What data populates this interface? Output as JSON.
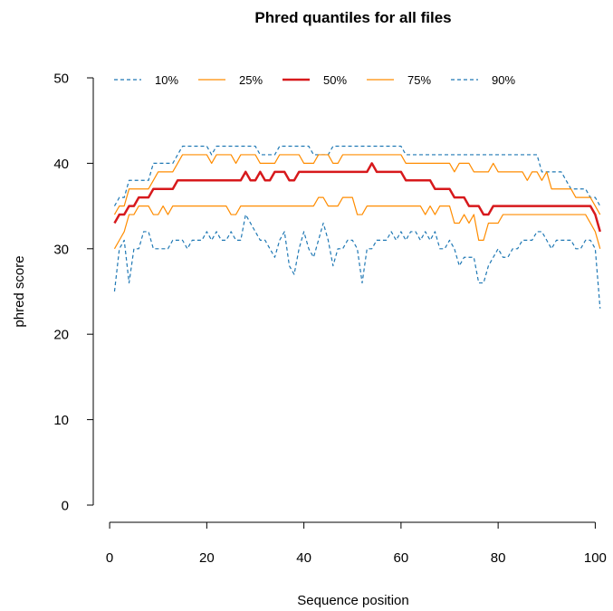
{
  "chart_data": {
    "type": "line",
    "title": "Phred quantiles for all files",
    "xlabel": "Sequence position",
    "ylabel": "phred score",
    "xlim": [
      1,
      101
    ],
    "ylim": [
      0,
      50
    ],
    "xticks": [
      0,
      20,
      40,
      60,
      80,
      100
    ],
    "yticks": [
      0,
      10,
      20,
      30,
      40,
      50
    ],
    "grid": false,
    "legend_position": "top",
    "x": [
      1,
      2,
      3,
      4,
      5,
      6,
      7,
      8,
      9,
      10,
      11,
      12,
      13,
      14,
      15,
      16,
      17,
      18,
      19,
      20,
      21,
      22,
      23,
      24,
      25,
      26,
      27,
      28,
      29,
      30,
      31,
      32,
      33,
      34,
      35,
      36,
      37,
      38,
      39,
      40,
      41,
      42,
      43,
      44,
      45,
      46,
      47,
      48,
      49,
      50,
      51,
      52,
      53,
      54,
      55,
      56,
      57,
      58,
      59,
      60,
      61,
      62,
      63,
      64,
      65,
      66,
      67,
      68,
      69,
      70,
      71,
      72,
      73,
      74,
      75,
      76,
      77,
      78,
      79,
      80,
      81,
      82,
      83,
      84,
      85,
      86,
      87,
      88,
      89,
      90,
      91,
      92,
      93,
      94,
      95,
      96,
      97,
      98,
      99,
      100,
      101
    ],
    "series": [
      {
        "name": "10%",
        "color": "#1f78b4",
        "style": "dashed",
        "width": 1.2,
        "values": [
          25,
          30,
          31,
          26,
          30,
          30,
          32,
          32,
          30,
          30,
          30,
          30,
          31,
          31,
          31,
          30,
          31,
          31,
          31,
          32,
          31,
          32,
          31,
          31,
          32,
          31,
          31,
          34,
          33,
          32,
          31,
          31,
          30,
          29,
          31,
          32,
          28,
          27,
          30,
          32,
          30,
          29,
          31,
          33,
          31,
          28,
          30,
          30,
          31,
          31,
          30,
          26,
          30,
          30,
          31,
          31,
          31,
          32,
          31,
          32,
          31,
          32,
          32,
          31,
          32,
          31,
          32,
          30,
          30,
          31,
          30,
          28,
          29,
          29,
          29,
          26,
          26,
          28,
          29,
          30,
          29,
          29,
          30,
          30,
          31,
          31,
          31,
          32,
          32,
          31,
          30,
          31,
          31,
          31,
          31,
          30,
          30,
          31,
          31,
          30,
          23
        ]
      },
      {
        "name": "25%",
        "color": "#ff8c00",
        "style": "solid",
        "width": 1.2,
        "values": [
          30,
          31,
          32,
          34,
          34,
          35,
          35,
          35,
          34,
          34,
          35,
          34,
          35,
          35,
          35,
          35,
          35,
          35,
          35,
          35,
          35,
          35,
          35,
          35,
          34,
          34,
          35,
          35,
          35,
          35,
          35,
          35,
          35,
          35,
          35,
          35,
          35,
          35,
          35,
          35,
          35,
          35,
          36,
          36,
          35,
          35,
          35,
          36,
          36,
          36,
          34,
          34,
          35,
          35,
          35,
          35,
          35,
          35,
          35,
          35,
          35,
          35,
          35,
          35,
          34,
          35,
          34,
          35,
          35,
          35,
          33,
          33,
          34,
          33,
          34,
          31,
          31,
          33,
          33,
          33,
          34,
          34,
          34,
          34,
          34,
          34,
          34,
          34,
          34,
          34,
          34,
          34,
          34,
          34,
          34,
          34,
          34,
          34,
          33,
          32,
          30
        ]
      },
      {
        "name": "50%",
        "color": "#d7191c",
        "style": "solid",
        "width": 2.5,
        "values": [
          33,
          34,
          34,
          35,
          35,
          36,
          36,
          36,
          37,
          37,
          37,
          37,
          37,
          38,
          38,
          38,
          38,
          38,
          38,
          38,
          38,
          38,
          38,
          38,
          38,
          38,
          38,
          39,
          38,
          38,
          39,
          38,
          38,
          39,
          39,
          39,
          38,
          38,
          39,
          39,
          39,
          39,
          39,
          39,
          39,
          39,
          39,
          39,
          39,
          39,
          39,
          39,
          39,
          40,
          39,
          39,
          39,
          39,
          39,
          39,
          38,
          38,
          38,
          38,
          38,
          38,
          37,
          37,
          37,
          37,
          36,
          36,
          36,
          35,
          35,
          35,
          34,
          34,
          35,
          35,
          35,
          35,
          35,
          35,
          35,
          35,
          35,
          35,
          35,
          35,
          35,
          35,
          35,
          35,
          35,
          35,
          35,
          35,
          35,
          34,
          32
        ]
      },
      {
        "name": "75%",
        "color": "#ff8c00",
        "style": "solid",
        "width": 1.2,
        "values": [
          34,
          35,
          35,
          37,
          37,
          37,
          37,
          37,
          38,
          39,
          39,
          39,
          39,
          40,
          41,
          41,
          41,
          41,
          41,
          41,
          40,
          41,
          41,
          41,
          41,
          40,
          41,
          41,
          41,
          41,
          40,
          40,
          40,
          40,
          41,
          41,
          41,
          41,
          41,
          40,
          40,
          40,
          41,
          41,
          41,
          40,
          40,
          41,
          41,
          41,
          41,
          41,
          41,
          41,
          41,
          41,
          41,
          41,
          41,
          41,
          40,
          40,
          40,
          40,
          40,
          40,
          40,
          40,
          40,
          40,
          39,
          40,
          40,
          40,
          39,
          39,
          39,
          39,
          40,
          39,
          39,
          39,
          39,
          39,
          39,
          38,
          39,
          39,
          38,
          39,
          37,
          37,
          37,
          37,
          37,
          36,
          36,
          36,
          36,
          35,
          34
        ]
      },
      {
        "name": "90%",
        "color": "#1f78b4",
        "style": "dashed",
        "width": 1.2,
        "values": [
          35,
          36,
          36,
          38,
          38,
          38,
          38,
          38,
          40,
          40,
          40,
          40,
          40,
          41,
          42,
          42,
          42,
          42,
          42,
          42,
          41,
          42,
          42,
          42,
          42,
          42,
          42,
          42,
          42,
          42,
          41,
          41,
          41,
          41,
          42,
          42,
          42,
          42,
          42,
          42,
          42,
          41,
          41,
          41,
          41,
          42,
          42,
          42,
          42,
          42,
          42,
          42,
          42,
          42,
          42,
          42,
          42,
          42,
          42,
          42,
          41,
          41,
          41,
          41,
          41,
          41,
          41,
          41,
          41,
          41,
          41,
          41,
          41,
          41,
          41,
          41,
          41,
          41,
          41,
          41,
          41,
          41,
          41,
          41,
          41,
          41,
          41,
          41,
          39,
          39,
          39,
          39,
          39,
          38,
          37,
          37,
          37,
          37,
          36,
          36,
          35
        ]
      }
    ]
  }
}
